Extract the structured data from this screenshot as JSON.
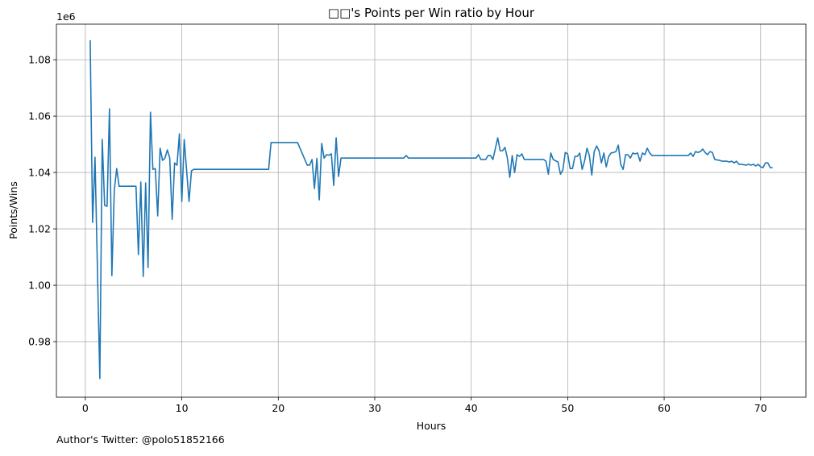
{
  "chart_data": {
    "type": "line",
    "title": "□□'s Points per Win ratio by Hour",
    "xlabel": "Hours",
    "ylabel": "Points/Wins",
    "y_offset_label": "1e6",
    "footnote": "Author's Twitter: @polo51852166",
    "grid": true,
    "color": "#1f77b4",
    "xlim": [
      -3.0,
      74.7
    ],
    "ylim": [
      0.9603,
      1.0926
    ],
    "xticks": [
      0,
      10,
      20,
      30,
      40,
      50,
      60,
      70
    ],
    "yticks": [
      0.98,
      {
        "value": 1,
        "label": "1.00"
      },
      1.02,
      1.04,
      1.06,
      1.08
    ],
    "x": [
      0.5,
      0.75,
      1.0,
      1.5,
      1.75,
      2.0,
      2.25,
      2.5,
      2.75,
      3.0,
      3.25,
      3.5,
      5.25,
      5.5,
      5.75,
      6.0,
      6.25,
      6.5,
      6.75,
      7.0,
      7.25,
      7.5,
      7.75,
      8.0,
      8.25,
      8.5,
      8.75,
      9.0,
      9.25,
      9.5,
      9.75,
      10.0,
      10.25,
      10.5,
      10.75,
      11.0,
      11.25,
      19.0,
      19.25,
      22.0,
      22.5,
      23.0,
      23.25,
      23.5,
      23.75,
      24.0,
      24.25,
      24.5,
      24.75,
      25.0,
      25.25,
      25.5,
      25.75,
      26.0,
      26.25,
      26.5,
      33.0,
      33.25,
      33.5,
      40.5,
      40.75,
      41.0,
      41.5,
      41.75,
      42.0,
      42.25,
      42.75,
      43.0,
      43.25,
      43.5,
      43.75,
      44.0,
      44.25,
      44.5,
      44.75,
      45.0,
      45.25,
      45.5,
      47.5,
      47.75,
      48.0,
      48.25,
      48.5,
      49.0,
      49.25,
      49.5,
      49.75,
      50.0,
      50.25,
      50.5,
      50.75,
      51.0,
      51.25,
      51.5,
      51.75,
      52.0,
      52.25,
      52.5,
      52.75,
      53.0,
      53.25,
      53.5,
      53.75,
      54.0,
      54.25,
      54.5,
      54.75,
      55.0,
      55.25,
      55.5,
      55.75,
      56.0,
      56.25,
      56.5,
      56.75,
      57.0,
      57.25,
      57.5,
      57.75,
      58.0,
      58.25,
      58.5,
      58.75,
      62.5,
      62.75,
      63.0,
      63.25,
      63.5,
      63.75,
      64.0,
      64.25,
      64.5,
      64.75,
      65.0,
      65.25,
      65.75,
      66.0,
      66.5,
      66.75,
      67.0,
      67.25,
      67.5,
      67.75,
      68.0,
      68.5,
      68.75,
      69.0,
      69.25,
      69.5,
      69.75,
      70.0,
      70.25,
      70.5,
      70.75,
      71.0,
      71.25
    ],
    "values": [
      1.0869,
      1.0223,
      1.0454,
      0.9669,
      1.0517,
      1.0283,
      1.028,
      1.0626,
      1.0034,
      1.0337,
      1.0414,
      1.0351,
      1.0351,
      1.0109,
      1.0366,
      1.0031,
      1.0363,
      1.0063,
      1.0614,
      1.0411,
      1.0414,
      1.0246,
      1.0486,
      1.0443,
      1.0451,
      1.048,
      1.0451,
      1.0234,
      1.0434,
      1.0426,
      1.0537,
      1.0297,
      1.0517,
      1.0406,
      1.0297,
      1.0406,
      1.0411,
      1.0411,
      1.0506,
      1.0506,
      1.0466,
      1.0426,
      1.0426,
      1.0446,
      1.0343,
      1.045,
      1.0303,
      1.0503,
      1.0451,
      1.0463,
      1.0461,
      1.0466,
      1.0354,
      1.0523,
      1.0386,
      1.0451,
      1.0451,
      1.046,
      1.0451,
      1.0451,
      1.0463,
      1.0446,
      1.0446,
      1.046,
      1.046,
      1.0446,
      1.0523,
      1.0477,
      1.0477,
      1.0489,
      1.0451,
      1.0383,
      1.046,
      1.04,
      1.0463,
      1.0457,
      1.0466,
      1.0446,
      1.0446,
      1.044,
      1.0394,
      1.0469,
      1.0446,
      1.0437,
      1.0394,
      1.0409,
      1.0471,
      1.0466,
      1.0414,
      1.0414,
      1.0457,
      1.0457,
      1.0469,
      1.0411,
      1.044,
      1.0486,
      1.046,
      1.0391,
      1.0474,
      1.0494,
      1.0477,
      1.0434,
      1.0469,
      1.042,
      1.0457,
      1.0469,
      1.0471,
      1.0474,
      1.0497,
      1.0429,
      1.0411,
      1.0463,
      1.0463,
      1.0451,
      1.0469,
      1.0466,
      1.0469,
      1.044,
      1.0469,
      1.0463,
      1.0486,
      1.0469,
      1.046,
      1.046,
      1.0469,
      1.0457,
      1.0474,
      1.0471,
      1.0474,
      1.0483,
      1.0471,
      1.0463,
      1.0474,
      1.0471,
      1.0446,
      1.0443,
      1.044,
      1.044,
      1.0437,
      1.044,
      1.0434,
      1.044,
      1.0429,
      1.0429,
      1.0426,
      1.0429,
      1.0426,
      1.0429,
      1.0423,
      1.0429,
      1.042,
      1.0417,
      1.0434,
      1.0434,
      1.0417,
      1.0417
    ]
  }
}
